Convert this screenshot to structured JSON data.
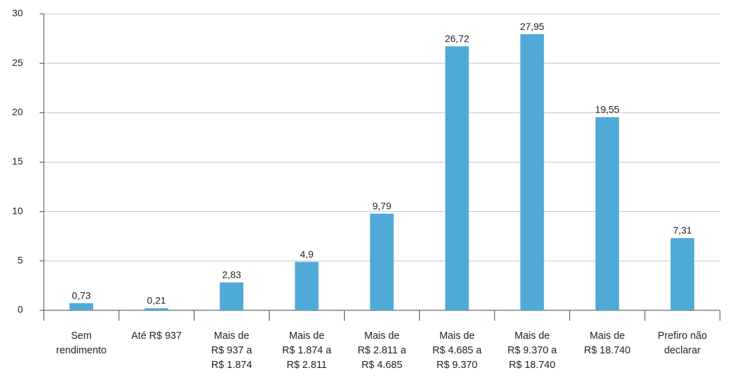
{
  "chart_data": {
    "type": "bar",
    "categories": [
      "Sem\nrendimento",
      "Até R$ 937",
      "Mais de\nR$ 937 a\nR$ 1.874",
      "Mais de\nR$ 1.874 a\nR$ 2.811",
      "Mais de\nR$ 2.811 a\nR$ 4.685",
      "Mais de\nR$ 4.685 a\nR$ 9.370",
      "Mais de\nR$ 9.370 a\nR$ 18.740",
      "Mais de\nR$ 18.740",
      "Prefiro não\ndeclarar"
    ],
    "values": [
      0.73,
      0.21,
      2.83,
      4.9,
      9.79,
      26.72,
      27.95,
      19.55,
      7.31
    ],
    "value_labels": [
      "0,73",
      "0,21",
      "2,83",
      "4,9",
      "9,79",
      "26,72",
      "27,95",
      "19,55",
      "7,31"
    ],
    "color": "#50aad8",
    "ylim": [
      0,
      30
    ],
    "yticks": [
      0,
      5,
      10,
      15,
      20,
      25,
      30
    ],
    "grid": true
  }
}
